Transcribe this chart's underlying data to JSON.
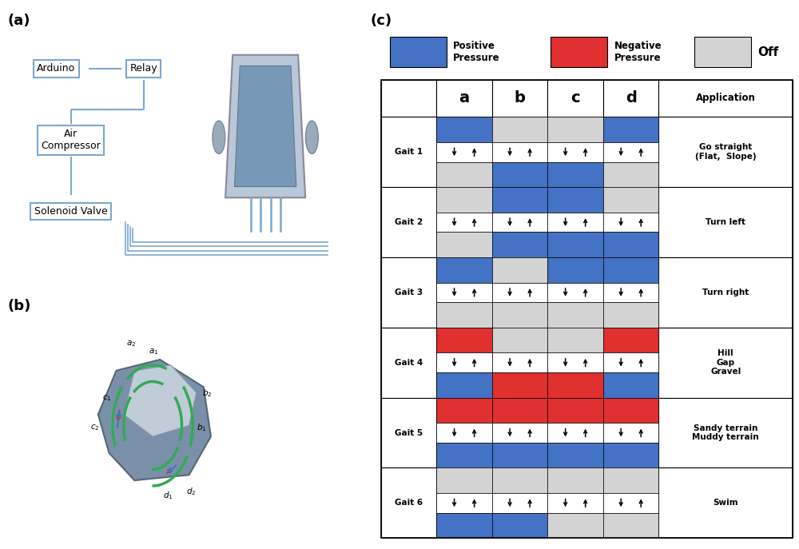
{
  "panel_a_label": "(a)",
  "panel_b_label": "(b)",
  "panel_c_label": "(c)",
  "blue": "#4472C4",
  "red": "#E03030",
  "gray": "#D3D3D3",
  "white": "#FFFFFF",
  "line_color": "#7BA7D0",
  "gait_labels": [
    "Gait 1",
    "Gait 2",
    "Gait 3",
    "Gait 4",
    "Gait 5",
    "Gait 6"
  ],
  "applications": [
    "Go straight\n(Flat,  Slope)",
    "Turn left",
    "Turn right",
    "Hill\nGap\nGravel",
    "Sandy terrain\nMuddy terrain",
    "Swim"
  ],
  "gait_data": [
    [
      [
        "B",
        "G",
        "G",
        "B"
      ],
      [
        "G",
        "B",
        "B",
        "G"
      ]
    ],
    [
      [
        "G",
        "B",
        "B",
        "G"
      ],
      [
        "G",
        "B",
        "B",
        "B"
      ]
    ],
    [
      [
        "B",
        "G",
        "B",
        "B"
      ],
      [
        "G",
        "G",
        "G",
        "G"
      ]
    ],
    [
      [
        "R",
        "G",
        "G",
        "R"
      ],
      [
        "B",
        "R",
        "R",
        "B"
      ]
    ],
    [
      [
        "R",
        "R",
        "R",
        "R"
      ],
      [
        "B",
        "B",
        "B",
        "B"
      ]
    ],
    [
      [
        "G",
        "G",
        "G",
        "G"
      ],
      [
        "B",
        "B",
        "G",
        "G"
      ]
    ]
  ]
}
